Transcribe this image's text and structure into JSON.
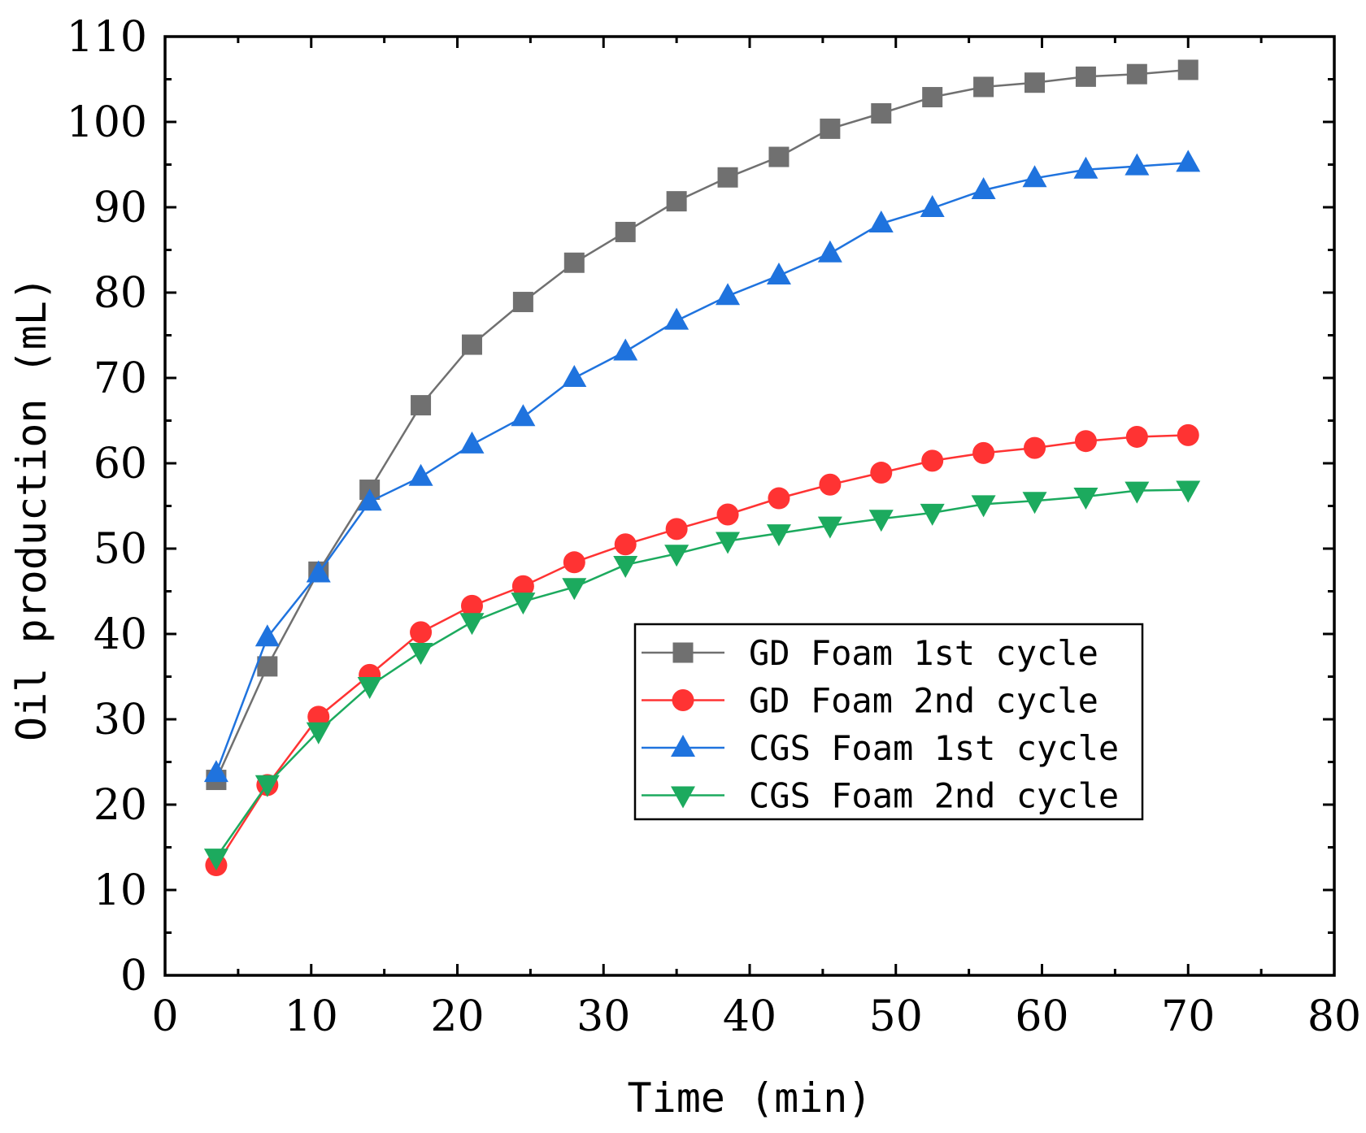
{
  "chart_data": {
    "type": "line",
    "title": "",
    "xlabel": "Time (min)",
    "ylabel": "Oil production (mL)",
    "xlim": [
      0,
      80
    ],
    "ylim": [
      0,
      110
    ],
    "xticks": [
      0,
      10,
      20,
      30,
      40,
      50,
      60,
      70,
      80
    ],
    "yticks": [
      0,
      10,
      20,
      30,
      40,
      50,
      60,
      70,
      80,
      90,
      100,
      110
    ],
    "grid": false,
    "legend_position": "center-right",
    "x": [
      3.5,
      7,
      10.5,
      14,
      17.5,
      21,
      24.5,
      28,
      31.5,
      35,
      38.5,
      42,
      45.5,
      49,
      52.5,
      56,
      59.5,
      63,
      66.5,
      70
    ],
    "series": [
      {
        "name": "GD Foam 1st cycle",
        "color": "#707070",
        "marker": "square",
        "values": [
          22.9,
          36.2,
          47.3,
          56.9,
          66.8,
          73.9,
          78.9,
          83.5,
          87.1,
          90.7,
          93.5,
          95.9,
          99.2,
          101.0,
          102.9,
          104.1,
          104.6,
          105.3,
          105.6,
          106.1
        ]
      },
      {
        "name": "GD Foam 2nd cycle",
        "color": "#ff3333",
        "marker": "circle",
        "values": [
          12.9,
          22.3,
          30.3,
          35.2,
          40.2,
          43.3,
          45.6,
          48.4,
          50.5,
          52.3,
          54.0,
          55.9,
          57.5,
          58.9,
          60.3,
          61.2,
          61.8,
          62.6,
          63.1,
          63.3
        ]
      },
      {
        "name": "CGS Foam 1st cycle",
        "color": "#1f73de",
        "marker": "triangle-up",
        "values": [
          23.7,
          39.6,
          47.1,
          55.5,
          58.4,
          62.2,
          65.4,
          70.0,
          73.1,
          76.7,
          79.6,
          82.0,
          84.6,
          88.1,
          89.9,
          92.0,
          93.4,
          94.4,
          94.8,
          95.2
        ]
      },
      {
        "name": "CGS Foam 2nd cycle",
        "color": "#1caa5e",
        "marker": "triangle-down",
        "values": [
          13.8,
          22.4,
          28.6,
          33.9,
          37.9,
          41.4,
          43.8,
          45.5,
          48.1,
          49.4,
          50.9,
          51.8,
          52.7,
          53.5,
          54.2,
          55.2,
          55.6,
          56.1,
          56.8,
          56.9
        ]
      }
    ]
  }
}
